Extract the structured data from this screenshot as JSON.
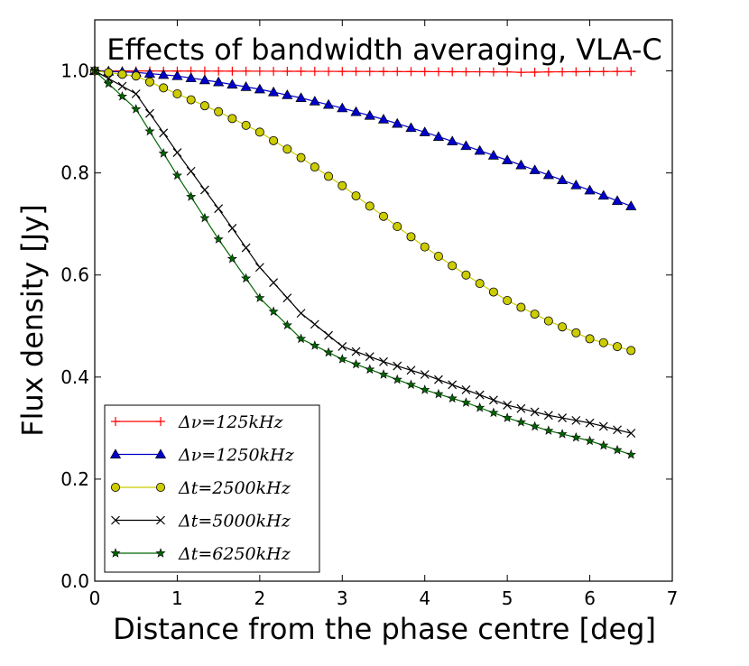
{
  "chart_data": {
    "type": "line",
    "title": "Effects of bandwidth averaging, VLA-C",
    "xlabel": "Distance from the phase centre [deg]",
    "ylabel": "Flux density [Jy]",
    "xlim": [
      0,
      7
    ],
    "ylim": [
      0,
      1.1
    ],
    "xticks": [
      0,
      1,
      2,
      3,
      4,
      5,
      6,
      7
    ],
    "xtick_labels": [
      "0",
      "1",
      "2",
      "3",
      "4",
      "5",
      "6",
      "7"
    ],
    "yticks": [
      0.0,
      0.2,
      0.4,
      0.6,
      0.8,
      1.0
    ],
    "ytick_labels": [
      "0.0",
      "0.2",
      "0.4",
      "0.6",
      "0.8",
      "1.0"
    ],
    "grid": false,
    "legend_position": "lower-left",
    "x_points": {
      "start": 0,
      "end": 6.5,
      "count": 40
    },
    "series": [
      {
        "name": "Δν=125kHz",
        "color": "#ff0000",
        "marker": "plus",
        "x": [
          0,
          3,
          5,
          5.2,
          5.5,
          6.5
        ],
        "y": [
          1.0,
          0.999,
          0.998,
          0.997,
          0.998,
          0.999
        ]
      },
      {
        "name": "Δν=1250kHz",
        "color": "#0000cc",
        "marker": "triangle",
        "x": [
          0,
          0.5,
          1,
          1.5,
          2,
          2.5,
          3,
          3.5,
          4,
          4.5,
          5,
          5.5,
          6,
          6.5
        ],
        "y": [
          1.0,
          0.997,
          0.99,
          0.978,
          0.964,
          0.947,
          0.927,
          0.905,
          0.88,
          0.853,
          0.825,
          0.796,
          0.766,
          0.735
        ]
      },
      {
        "name": "Δt=2500kHz",
        "color": "#cccc00",
        "marker": "circle",
        "x": [
          0,
          0.5,
          1,
          1.5,
          2,
          2.5,
          3,
          3.5,
          4,
          4.5,
          5,
          5.5,
          6,
          6.5
        ],
        "y": [
          1.0,
          0.99,
          0.955,
          0.92,
          0.88,
          0.83,
          0.775,
          0.715,
          0.655,
          0.6,
          0.55,
          0.51,
          0.475,
          0.452
        ]
      },
      {
        "name": "Δt=5000kHz",
        "color": "#000000",
        "marker": "x",
        "x": [
          0,
          0.5,
          1,
          1.5,
          2,
          2.5,
          3,
          3.5,
          4,
          4.5,
          5,
          5.5,
          6,
          6.5
        ],
        "y": [
          1.0,
          0.955,
          0.84,
          0.73,
          0.615,
          0.525,
          0.46,
          0.43,
          0.405,
          0.375,
          0.345,
          0.325,
          0.31,
          0.29
        ]
      },
      {
        "name": "Δt=6250kHz",
        "color": "#006600",
        "marker": "star",
        "x": [
          0,
          0.5,
          1,
          1.5,
          2,
          2.5,
          3,
          3.5,
          4,
          4.5,
          5,
          5.5,
          6,
          6.5
        ],
        "y": [
          1.0,
          0.925,
          0.795,
          0.67,
          0.555,
          0.475,
          0.435,
          0.405,
          0.375,
          0.35,
          0.32,
          0.295,
          0.275,
          0.248
        ]
      }
    ]
  }
}
